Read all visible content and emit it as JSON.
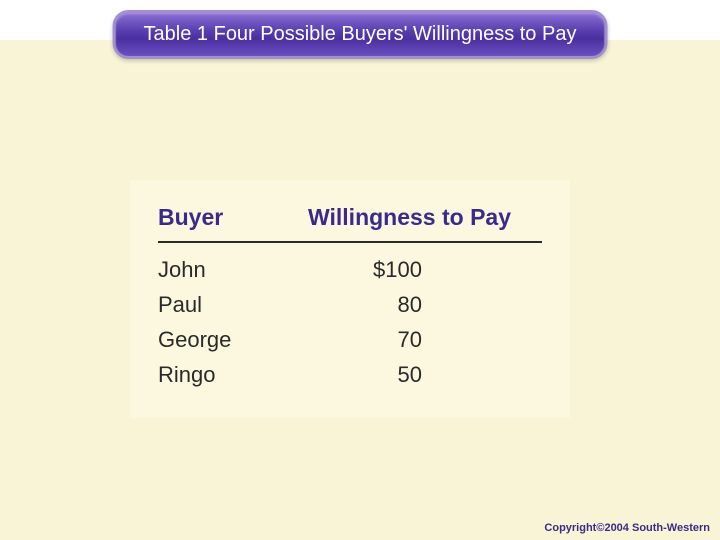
{
  "title": "Table 1 Four Possible Buyers' Willingness to Pay",
  "table": {
    "columns": [
      "Buyer",
      "Willingness to Pay"
    ],
    "rows": [
      {
        "buyer": "John",
        "wtp": "$100"
      },
      {
        "buyer": "Paul",
        "wtp": "80"
      },
      {
        "buyer": "George",
        "wtp": "70"
      },
      {
        "buyer": "Ringo",
        "wtp": "50"
      }
    ],
    "header_color": "#3b2a8a",
    "header_fontsize": 23,
    "body_fontsize": 22,
    "body_color": "#2a2a2a",
    "rule_color": "#2a2a2a",
    "background": "#fcf8e0"
  },
  "colors": {
    "page_background": "#f9f4d5",
    "banner_gradient_top": "#8a6fd4",
    "banner_gradient_bottom": "#4a2f9f",
    "banner_border": "#a090d0",
    "banner_text": "#ffffff"
  },
  "copyright": "Copyright©2004  South-Western"
}
